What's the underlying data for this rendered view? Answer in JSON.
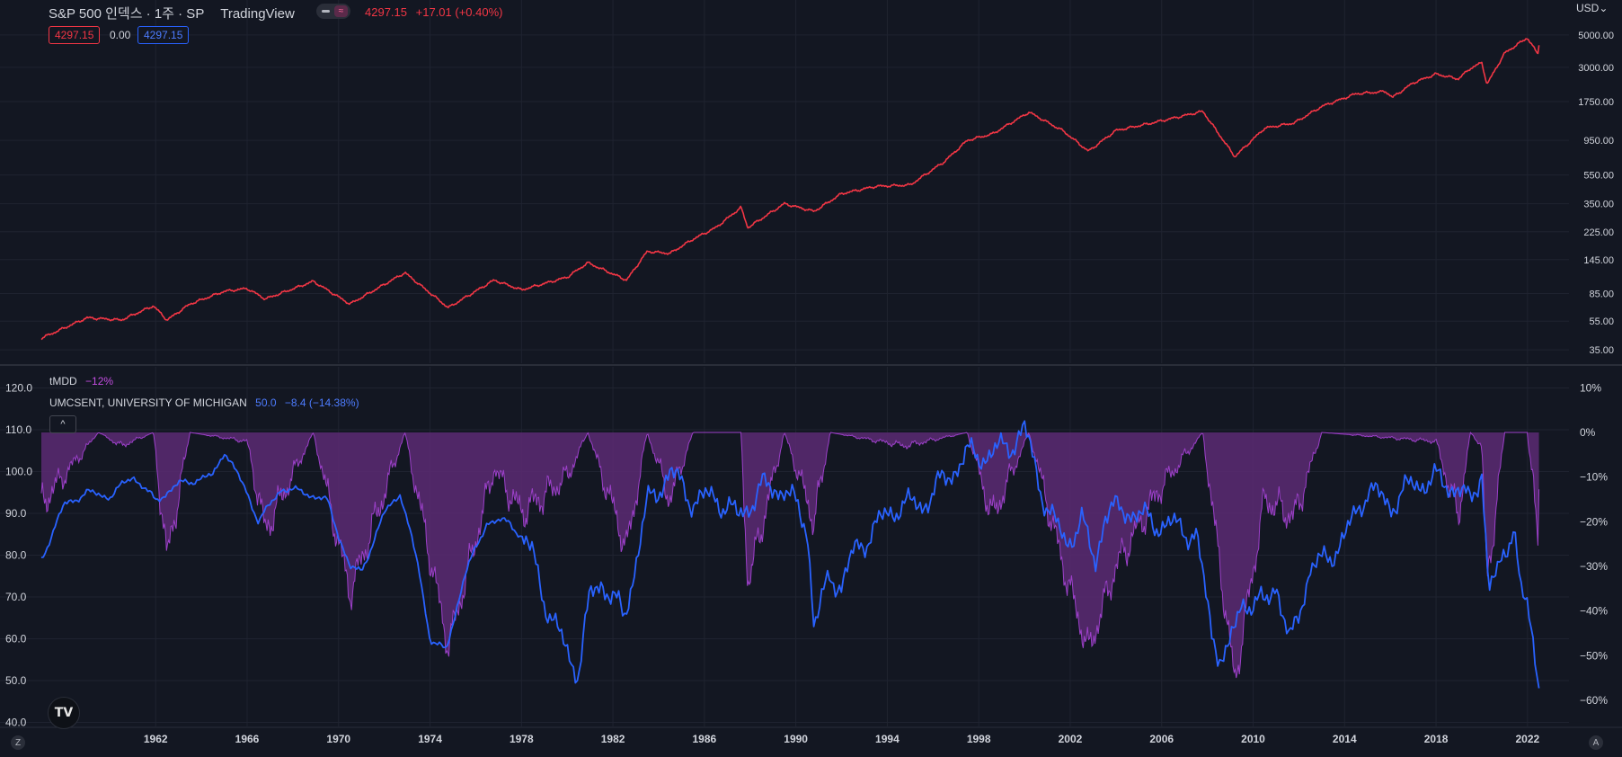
{
  "header": {
    "symbol": "S&P 500 인덱스 · 1주 · SP",
    "source": "TradingView",
    "last": "4297.15",
    "change": "+17.01 (+0.40%)",
    "badge_left": "4297.15",
    "badge_mid": "0.00",
    "badge_right": "4297.15",
    "currency": "USD",
    "currency_caret": "⌄"
  },
  "indicators": {
    "tmdd_label": "tMDD",
    "tmdd_value": "−12%",
    "umc_label": "UMCSENT, UNIVERSITY OF MICHIGAN",
    "umc_value": "50.0",
    "umc_change": "−8.4 (−14.38%)"
  },
  "buttons": {
    "collapse": "^",
    "logo": "TV",
    "corner_left": "Z",
    "corner_right": "A"
  },
  "colors": {
    "background": "#131722",
    "grid": "#1f2330",
    "sp500": "#f23645",
    "umcsent": "#2962ff",
    "drawdown_fill": "#5c2a73",
    "drawdown_line": "#9c40c9",
    "tmdd_value": "#c34de0"
  },
  "chart_data": [
    {
      "type": "line",
      "title": "S&P 500 인덱스 · 1주 · SP",
      "scale": "log",
      "y_axis_ticks": [
        "5000.00",
        "3000.00",
        "1750.00",
        "950.00",
        "550.00",
        "350.00",
        "225.00",
        "145.00",
        "85.00",
        "55.00",
        "35.00"
      ],
      "series": [
        {
          "name": "S&P 500",
          "x": [
            1957.0,
            1959.0,
            1960.5,
            1961.9,
            1962.5,
            1963.5,
            1965.0,
            1966.0,
            1966.8,
            1968.9,
            1970.5,
            1972.9,
            1974.8,
            1976.8,
            1978.0,
            1980.0,
            1980.9,
            1982.6,
            1983.5,
            1984.5,
            1985.5,
            1986.5,
            1987.6,
            1987.9,
            1989.5,
            1990.8,
            1992.0,
            1993.5,
            1995.0,
            1996.5,
            1997.5,
            1998.6,
            2000.2,
            2001.7,
            2002.8,
            2004.0,
            2005.5,
            2007.8,
            2009.2,
            2010.5,
            2011.8,
            2013.0,
            2014.5,
            2015.8,
            2016.1,
            2017.0,
            2018.0,
            2018.97,
            2019.5,
            2020.0,
            2020.23,
            2021.0,
            2021.99,
            2022.45,
            2022.5
          ],
          "y": [
            42,
            58,
            56,
            70,
            56,
            72,
            88,
            92,
            78,
            103,
            72,
            118,
            68,
            105,
            90,
            110,
            138,
            105,
            165,
            160,
            200,
            240,
            330,
            240,
            350,
            310,
            410,
            460,
            470,
            680,
            950,
            1050,
            1480,
            1100,
            800,
            1110,
            1240,
            1500,
            735,
            1150,
            1250,
            1620,
            1980,
            2050,
            1870,
            2350,
            2700,
            2500,
            2950,
            3230,
            2300,
            3750,
            4780,
            3700,
            4297
          ]
        }
      ]
    },
    {
      "type": "line",
      "title": "UMCSENT, UNIVERSITY OF MICHIGAN",
      "y_axis_left_ticks": [
        "120.0",
        "110.0",
        "100.0",
        "90.0",
        "80.0",
        "70.0",
        "60.0",
        "50.0",
        "40.0"
      ],
      "y_axis_right_ticks": [
        "10%",
        "0%",
        "−10%",
        "−20%",
        "−30%",
        "−40%",
        "−50%",
        "−60%"
      ],
      "x_tick_labels": [
        "1962",
        "1966",
        "1970",
        "1974",
        "1978",
        "1982",
        "1986",
        "1990",
        "1994",
        "1998",
        "2002",
        "2006",
        "2010",
        "2014",
        "2018",
        "2022"
      ],
      "series": [
        {
          "name": "UMCSENT",
          "x": [
            1957.0,
            1958.0,
            1959.0,
            1960.0,
            1961.0,
            1962.0,
            1963.0,
            1964.5,
            1965.0,
            1966.0,
            1966.5,
            1967.5,
            1968.5,
            1969.5,
            1970.5,
            1971.0,
            1972.0,
            1972.7,
            1973.5,
            1974.0,
            1974.7,
            1975.5,
            1976.5,
            1977.5,
            1978.5,
            1979.2,
            1980.0,
            1980.5,
            1981.0,
            1981.5,
            1982.5,
            1983.5,
            1984.5,
            1985.5,
            1986.5,
            1987.5,
            1988.5,
            1989.5,
            1990.5,
            1990.8,
            1991.5,
            1992.0,
            1992.5,
            1993.5,
            1994.5,
            1995.5,
            1996.5,
            1997.5,
            1998.5,
            1999.5,
            2000.0,
            2001.0,
            2001.8,
            2002.5,
            2003.1,
            2003.5,
            2004.5,
            2005.5,
            2006.5,
            2007.5,
            2008.2,
            2008.5,
            2008.9,
            2009.5,
            2010.5,
            2011.0,
            2011.6,
            2012.5,
            2013.0,
            2014.0,
            2015.0,
            2016.0,
            2017.0,
            2018.0,
            2019.0,
            2019.5,
            2020.0,
            2020.3,
            2020.7,
            2021.0,
            2021.4,
            2021.7,
            2022.0,
            2022.5
          ],
          "y": [
            79,
            92,
            95,
            94,
            99,
            93,
            97,
            99,
            105,
            95,
            88,
            96,
            95,
            93,
            77,
            76,
            90,
            95,
            77,
            60,
            57,
            75,
            88,
            88,
            80,
            66,
            57,
            52,
            70,
            74,
            65,
            92,
            100,
            93,
            94,
            89,
            96,
            96,
            87,
            63,
            75,
            73,
            80,
            87,
            92,
            92,
            98,
            104,
            104,
            107,
            110,
            91,
            83,
            88,
            78,
            90,
            91,
            88,
            87,
            85,
            61,
            57,
            56,
            69,
            68,
            74,
            58,
            77,
            78,
            84,
            96,
            92,
            97,
            98,
            96,
            92,
            101,
            72,
            75,
            81,
            88,
            71,
            67,
            50
          ]
        },
        {
          "name": "tMDD",
          "unit": "%",
          "x": [
            1957.0,
            1959.5,
            1960.5,
            1961.9,
            1962.5,
            1963.5,
            1966.0,
            1966.8,
            1968.9,
            1970.5,
            1972.9,
            1974.8,
            1976.8,
            1978.0,
            1980.0,
            1980.9,
            1982.6,
            1983.5,
            1984.5,
            1985.5,
            1987.6,
            1987.9,
            1989.5,
            1990.8,
            1991.5,
            1994.8,
            1997.5,
            1998.6,
            2000.2,
            2001.7,
            2002.8,
            2004.0,
            2006.0,
            2007.8,
            2009.2,
            2010.5,
            2011.8,
            2013.0,
            2018.0,
            2018.97,
            2019.5,
            2020.0,
            2020.23,
            2021.0,
            2021.99,
            2022.45,
            2022.5
          ],
          "y": [
            -16,
            0,
            -3,
            0,
            -28,
            0,
            -2,
            -22,
            0,
            -36,
            0,
            -48,
            -8,
            -18,
            -10,
            0,
            -26,
            0,
            -15,
            0,
            0,
            -34,
            0,
            -20,
            0,
            -3,
            0,
            -19,
            0,
            -30,
            -49,
            -30,
            -12,
            0,
            -56,
            -15,
            -19,
            0,
            -2,
            -19,
            0,
            -3,
            -34,
            0,
            0,
            -23,
            -12
          ]
        }
      ]
    }
  ]
}
